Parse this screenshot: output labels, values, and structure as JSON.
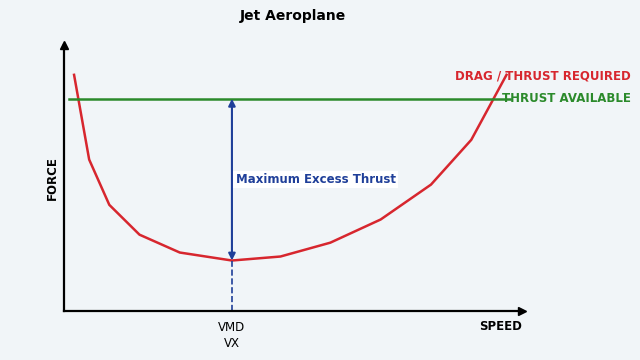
{
  "chart_data": {
    "type": "line",
    "title": "Jet Aeroplane",
    "x_label": "SPEED",
    "y_label": "FORCE",
    "xlim": [
      0,
      100
    ],
    "ylim": [
      0,
      100
    ],
    "xticks": [],
    "yticks": [],
    "tick_labels": false,
    "series": [
      {
        "name": "DRAG / THRUST REQUIRED",
        "color": "#d7262e",
        "line_style": "solid",
        "x": [
          2.2,
          5.5,
          9.9,
          16.5,
          25.3,
          36.7,
          47.3,
          58.2,
          69.2,
          80.2,
          89.0,
          96.7
        ],
        "values": [
          88.8,
          57.0,
          40.0,
          28.8,
          22.1,
          19.1,
          20.6,
          25.8,
          34.5,
          47.6,
          64.4,
          88.8
        ]
      },
      {
        "name": "THRUST AVAILABLE",
        "color": "#2b8a2b",
        "line_style": "solid",
        "x": [
          1.1,
          97.4
        ],
        "values": [
          79.8,
          79.8
        ]
      }
    ],
    "annotations": [
      {
        "text": "Maximum Excess Thrust",
        "color": "#1f3f99",
        "x": 36.7,
        "y_from": 19.1,
        "y_to": 79.8
      },
      {
        "text": "VMD",
        "x": 36.7
      },
      {
        "text": "VX",
        "x": 36.7
      }
    ]
  }
}
